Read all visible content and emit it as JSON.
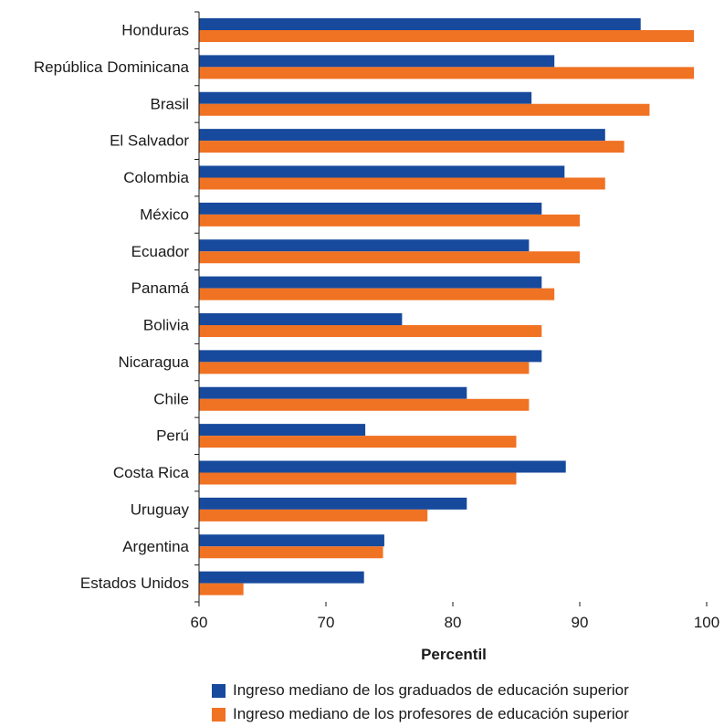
{
  "colors": {
    "graduados": "#174a9c",
    "profesores": "#f07223",
    "axis": "#1a1a1a"
  },
  "chart_data": {
    "type": "bar",
    "orientation": "horizontal",
    "categories": [
      "Honduras",
      "República Dominicana",
      "Brasil",
      "El Salvador",
      "Colombia",
      "México",
      "Ecuador",
      "Panamá",
      "Bolivia",
      "Nicaragua",
      "Chile",
      "Perú",
      "Costa Rica",
      "Uruguay",
      "Argentina",
      "Estados Unidos"
    ],
    "series": [
      {
        "name": "Ingreso mediano de los graduados de educación superior",
        "color": "#174a9c",
        "values": [
          94.8,
          88,
          86.2,
          92,
          88.8,
          87,
          86,
          87,
          76,
          87,
          81.1,
          73.1,
          88.9,
          81.1,
          74.6,
          73
        ]
      },
      {
        "name": "Ingreso mediano de los profesores de educación superior",
        "color": "#f07223",
        "values": [
          99,
          99,
          95.5,
          93.5,
          92,
          90,
          90,
          88,
          87,
          86,
          86,
          85,
          85,
          78,
          74.5,
          63.5
        ]
      }
    ],
    "xlabel": "Percentil",
    "xlim": [
      60,
      100
    ],
    "xticks": [
      60,
      70,
      80,
      90,
      100
    ],
    "xtick_labels": [
      "60",
      "70",
      "80",
      "90",
      "100"
    ],
    "grid": false,
    "legend_position": "bottom"
  }
}
